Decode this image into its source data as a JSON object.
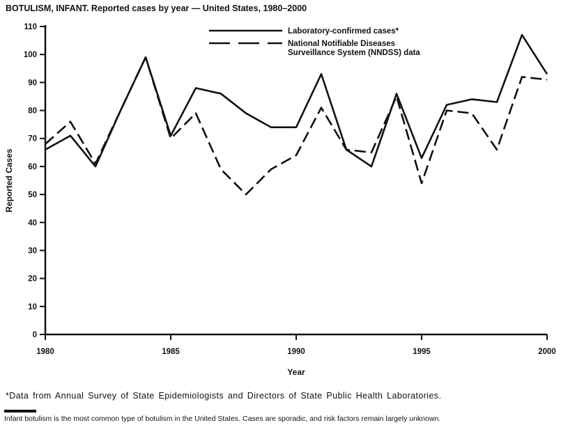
{
  "title": "BOTULISM, INFANT. Reported cases by year — United States, 1980–2000",
  "footnotes": {
    "source": "*Data from Annual Survey of State Epidemiologists and Directors of State Public Health Laboratories.",
    "note": "Infant botulism is the most common type of botulism in the United States. Cases are sporadic, and risk factors remain largely unknown."
  },
  "chart_data": {
    "type": "line",
    "title": "BOTULISM, INFANT. Reported cases by year — United States, 1980–2000",
    "xlabel": "Year",
    "ylabel": "Reported Cases",
    "ylim": [
      0,
      110
    ],
    "ytick_step": 10,
    "xticks": [
      1980,
      1985,
      1990,
      1995,
      2000
    ],
    "grid": false,
    "legend_position": "top-center-inside",
    "ink": "#111111",
    "x": [
      1980,
      1981,
      1982,
      1983,
      1984,
      1985,
      1986,
      1987,
      1988,
      1989,
      1990,
      1991,
      1992,
      1993,
      1994,
      1995,
      1996,
      1997,
      1998,
      1999,
      2000
    ],
    "series": [
      {
        "name": "Laboratory-confirmed cases*",
        "label_lines": [
          "Laboratory-confirmed cases*"
        ],
        "style": "solid",
        "values": [
          66,
          71,
          60,
          80,
          99,
          71,
          88,
          86,
          79,
          74,
          74,
          93,
          66,
          60,
          86,
          63,
          82,
          84,
          83,
          107,
          93
        ]
      },
      {
        "name": "National Notifiable Diseases Surveillance System (NNDSS) data",
        "label_lines": [
          "National Notifiable Diseases",
          "Surveillance System (NNDSS) data"
        ],
        "style": "dashed",
        "values": [
          68,
          76,
          61,
          80,
          99,
          70,
          79,
          59,
          50,
          59,
          64,
          81,
          66,
          65,
          85,
          54,
          80,
          79,
          66,
          92,
          91
        ]
      }
    ]
  }
}
